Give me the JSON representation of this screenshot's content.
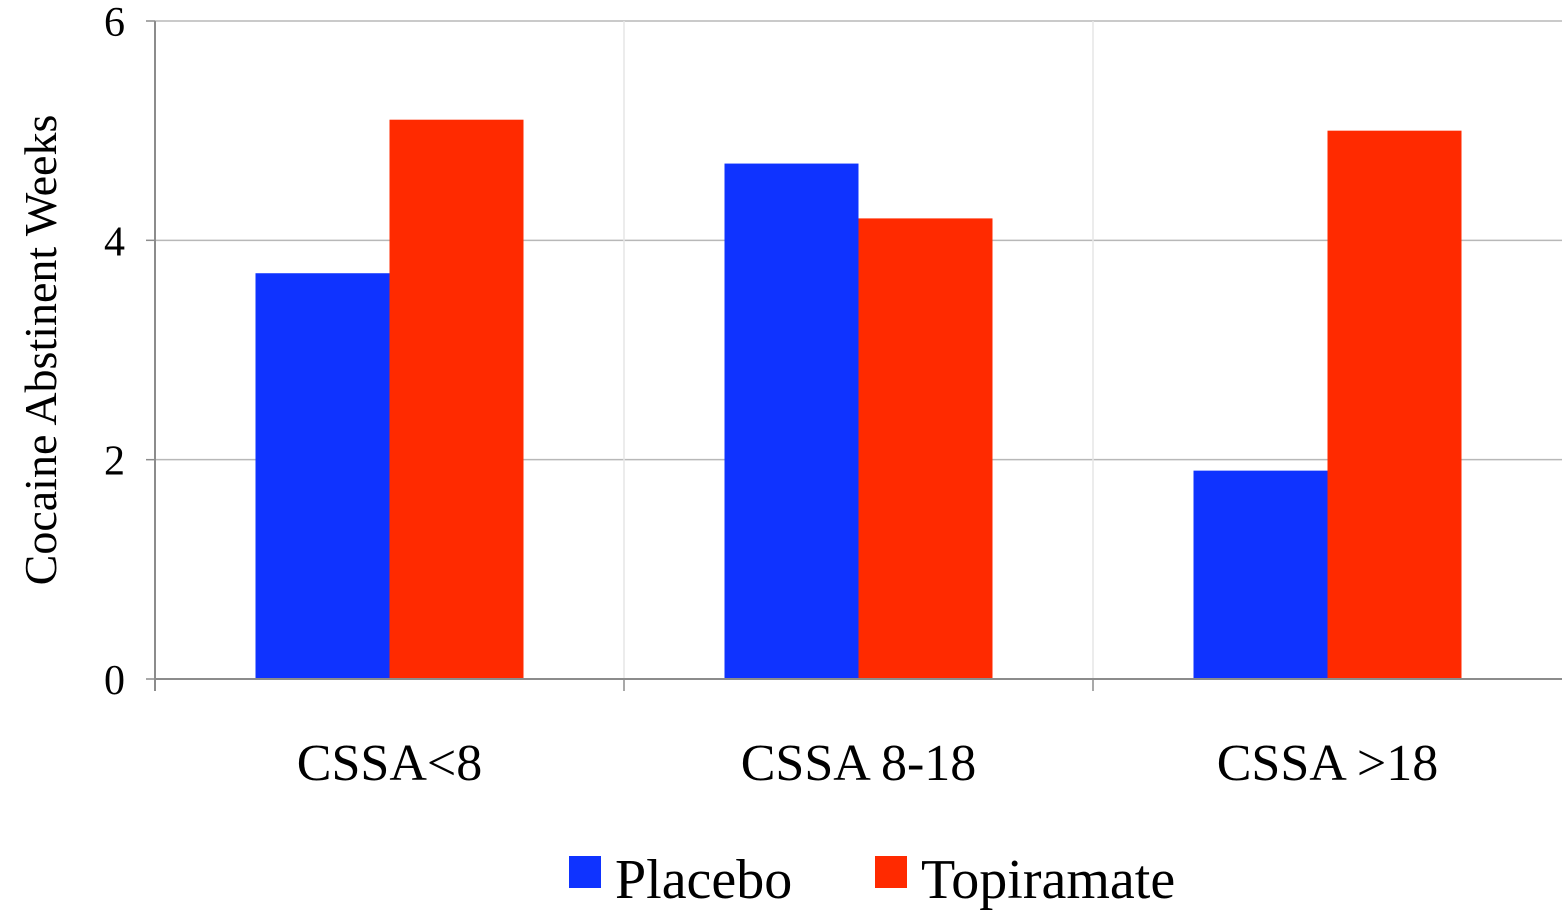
{
  "chart_data": {
    "type": "bar",
    "categories": [
      "CSSA<8",
      "CSSA 8-18",
      "CSSA >18"
    ],
    "series": [
      {
        "name": "Placebo",
        "values": [
          3.7,
          4.7,
          1.9
        ],
        "color": "#0f33ff"
      },
      {
        "name": "Topiramate",
        "values": [
          5.1,
          4.2,
          5.0
        ],
        "color": "#ff2a00"
      }
    ],
    "ylabel": "Cocaine Abstinent Weeks",
    "ylim": [
      0,
      6
    ],
    "yticks": [
      0,
      2,
      4,
      6
    ],
    "grid": true,
    "legend": "bottom-center"
  }
}
